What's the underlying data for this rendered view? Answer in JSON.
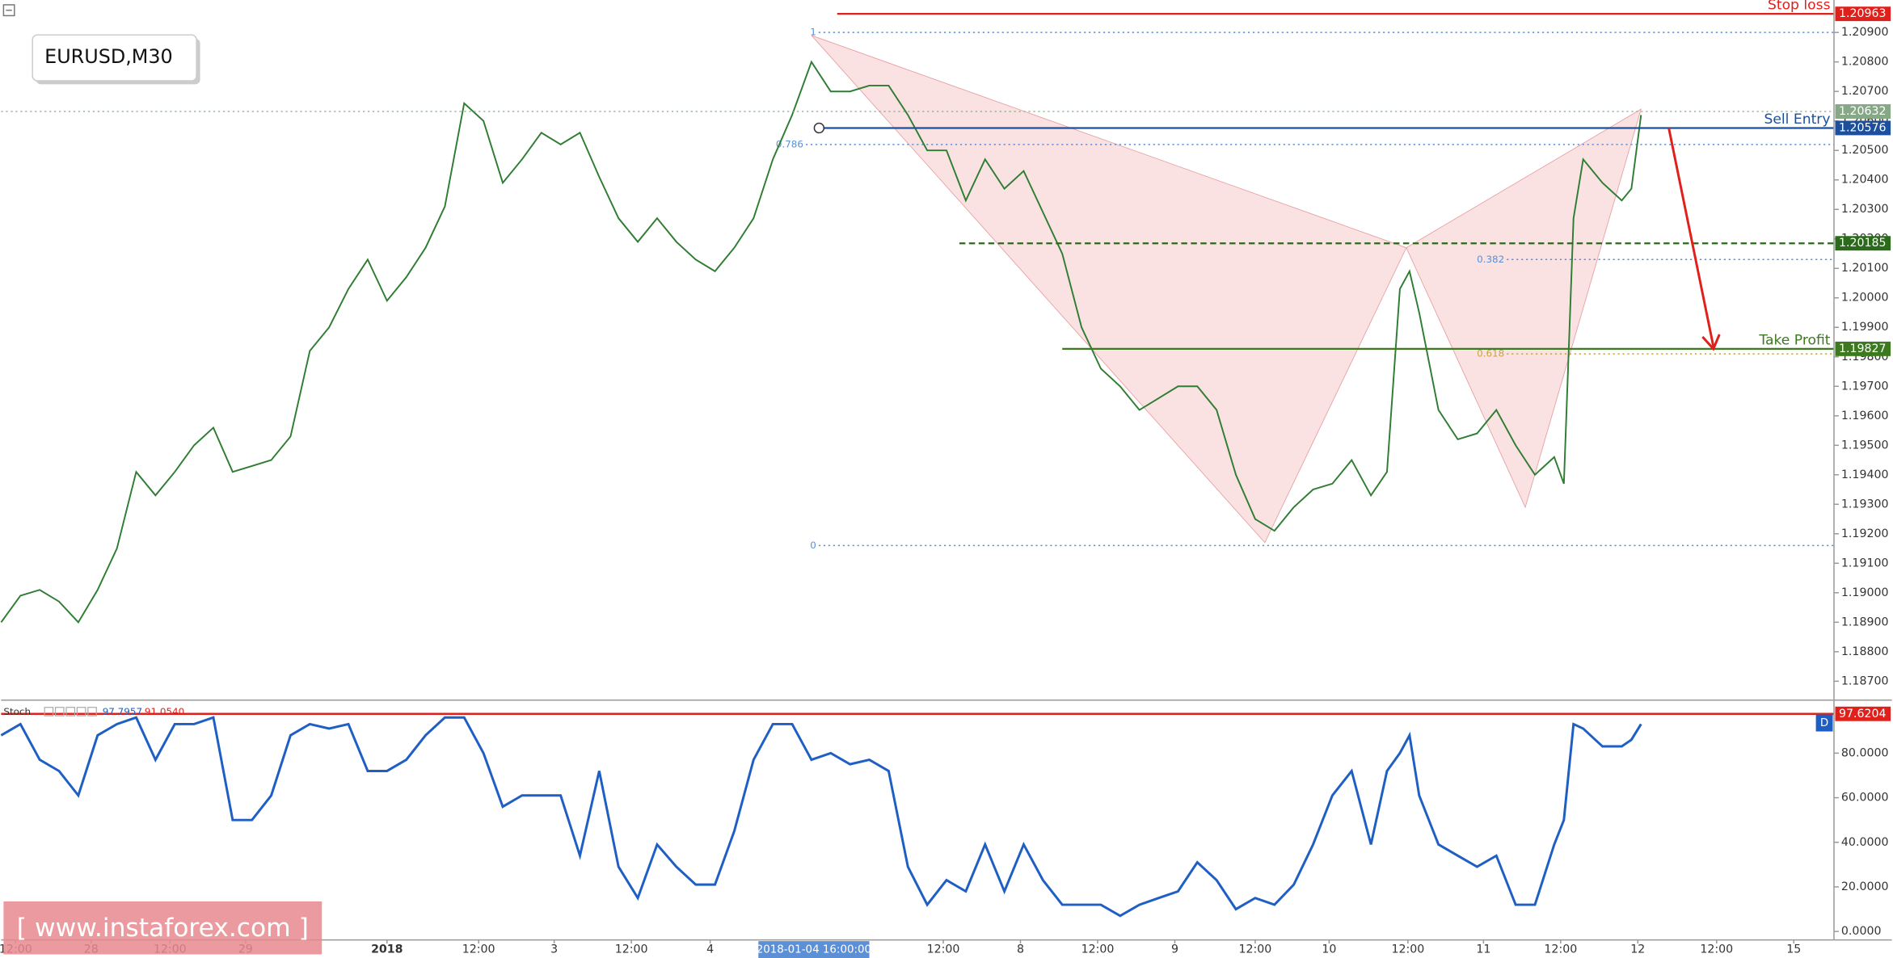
{
  "symbol_label": "EURUSD,M30",
  "watermark": "[ www.instaforex.com ]",
  "chart_data": [
    {
      "type": "line",
      "color": "#2e7d32",
      "x": [
        0,
        6,
        12,
        18,
        24,
        30,
        36,
        42,
        48,
        54,
        60,
        66,
        72,
        78,
        84,
        90,
        96,
        102,
        108,
        114,
        120,
        126,
        132,
        138,
        144,
        150,
        156,
        162,
        168,
        174,
        180,
        186,
        192,
        198,
        204,
        210,
        216,
        222,
        228,
        234,
        240,
        246,
        252,
        258,
        264,
        270,
        276,
        282,
        288,
        294,
        300,
        306,
        312,
        318,
        324,
        330,
        336,
        342,
        348,
        354,
        360,
        366,
        372,
        378,
        384,
        390,
        396,
        402,
        408,
        414,
        420,
        426,
        431,
        435,
        438,
        441,
        447,
        453,
        459,
        465,
        471,
        477,
        483,
        486,
        489,
        492,
        498,
        504,
        507,
        510
      ],
      "values": [
        1.189,
        1.1899,
        1.1901,
        1.1897,
        1.189,
        1.1901,
        1.1915,
        1.1941,
        1.1933,
        1.1941,
        1.195,
        1.1956,
        1.1941,
        1.1943,
        1.1945,
        1.1953,
        1.1982,
        1.199,
        1.2003,
        1.2013,
        1.1999,
        1.2007,
        1.2017,
        1.2031,
        1.2066,
        1.206,
        1.2039,
        1.2047,
        1.2056,
        1.2052,
        1.2056,
        1.2041,
        1.2027,
        1.2019,
        1.2027,
        1.2019,
        1.2013,
        1.2009,
        1.2017,
        1.2027,
        1.2047,
        1.2062,
        1.208,
        1.207,
        1.207,
        1.2072,
        1.2072,
        1.2062,
        1.205,
        1.205,
        1.2033,
        1.2047,
        1.2037,
        1.2043,
        1.2029,
        1.2015,
        1.199,
        1.1976,
        1.197,
        1.1962,
        1.1966,
        1.197,
        1.197,
        1.1962,
        1.194,
        1.1925,
        1.1921,
        1.1929,
        1.1935,
        1.1937,
        1.1945,
        1.1933,
        1.1941,
        1.2003,
        1.2009,
        1.1995,
        1.1962,
        1.1952,
        1.1954,
        1.1962,
        1.195,
        1.194,
        1.1946,
        1.1937,
        1.2027,
        1.2047,
        1.2039,
        1.2033,
        1.2037,
        1.2062
      ],
      "xlim": [
        0,
        570
      ],
      "ylim": [
        1.1864,
        1.2101
      ],
      "xticks": [
        {
          "value": 4.5,
          "label": "12:00"
        },
        {
          "value": 28,
          "label": "28"
        },
        {
          "value": 52.5,
          "label": "12:00"
        },
        {
          "value": 76,
          "label": "29"
        },
        {
          "value": 120,
          "label": "2018"
        },
        {
          "value": 148.5,
          "label": "12:00"
        },
        {
          "value": 172,
          "label": "3"
        },
        {
          "value": 196,
          "label": "12:00"
        },
        {
          "value": 220.5,
          "label": "4"
        },
        {
          "value": 293,
          "label": "12:00"
        },
        {
          "value": 317,
          "label": "8"
        },
        {
          "value": 341,
          "label": "12:00"
        },
        {
          "value": 365,
          "label": "9"
        },
        {
          "value": 390,
          "label": "12:00"
        },
        {
          "value": 413,
          "label": "10"
        },
        {
          "value": 437.5,
          "label": "12:00"
        },
        {
          "value": 461,
          "label": "11"
        },
        {
          "value": 485,
          "label": "12:00"
        },
        {
          "value": 509,
          "label": "12"
        },
        {
          "value": 533.5,
          "label": "12:00"
        },
        {
          "value": 557.5,
          "label": "15"
        }
      ],
      "yticks": [
        {
          "value": 1.187,
          "label": "1.18700"
        },
        {
          "value": 1.188,
          "label": "1.18800"
        },
        {
          "value": 1.189,
          "label": "1.18900"
        },
        {
          "value": 1.19,
          "label": "1.19000"
        },
        {
          "value": 1.191,
          "label": "1.19100"
        },
        {
          "value": 1.192,
          "label": "1.19200"
        },
        {
          "value": 1.193,
          "label": "1.19300"
        },
        {
          "value": 1.194,
          "label": "1.19400"
        },
        {
          "value": 1.195,
          "label": "1.19500"
        },
        {
          "value": 1.196,
          "label": "1.19600"
        },
        {
          "value": 1.197,
          "label": "1.19700"
        },
        {
          "value": 1.198,
          "label": "1.19800"
        },
        {
          "value": 1.199,
          "label": "1.19900"
        },
        {
          "value": 1.2,
          "label": "1.20000"
        },
        {
          "value": 1.201,
          "label": "1.20100"
        },
        {
          "value": 1.202,
          "label": "1.20200"
        },
        {
          "value": 1.203,
          "label": "1.20300"
        },
        {
          "value": 1.204,
          "label": "1.20400"
        },
        {
          "value": 1.205,
          "label": "1.20500"
        },
        {
          "value": 1.206,
          "label": "1.20600"
        },
        {
          "value": 1.207,
          "label": "1.20700"
        },
        {
          "value": 1.208,
          "label": "1.20800"
        },
        {
          "value": 1.209,
          "label": "1.20900"
        }
      ],
      "crosshair": {
        "x": 252,
        "label": "2018-01-04 16:00:00"
      },
      "pattern": {
        "x": [
          252,
          393,
          437,
          474,
          510
        ],
        "values": [
          1.2089,
          1.1917,
          1.2017,
          1.1929,
          1.2064
        ]
      },
      "levels": [
        {
          "label": "Stop loss",
          "value": 1.20963,
          "color": "#e0201b",
          "line_style": "solid",
          "x_start": 260
        },
        {
          "value": 1.20632,
          "color": "#86a886",
          "line_style": "dotted",
          "x_start": 0
        },
        {
          "label": "Sell Entry",
          "value": 1.20576,
          "color": "#1c4f9c",
          "line_style": "solid",
          "x_start": 254
        },
        {
          "value": 1.20185,
          "color": "#2a6a1a",
          "line_style": "dashed",
          "x_start": 298
        },
        {
          "label": "Take Profit",
          "value": 1.19827,
          "color": "#3d7a1f",
          "line_style": "solid",
          "x_start": 330
        }
      ],
      "fib_levels": [
        {
          "ratio": 1,
          "price": 1.209,
          "color": "#5b8fd6",
          "x_start": 249
        },
        {
          "ratio": 0.786,
          "price": 1.2052,
          "color": "#5b8fd6",
          "x_start": 245
        },
        {
          "ratio": 0.382,
          "price": 1.2013,
          "color": "#5b8fd6",
          "x_start": 463
        },
        {
          "ratio": 0.618,
          "price": 1.1981,
          "color": "#c9a23c",
          "x_start": 463
        },
        {
          "ratio": 0,
          "price": 1.1916,
          "color": "#5b8fd6",
          "x_start": 249
        }
      ]
    },
    {
      "type": "line",
      "title": "Stoch",
      "color": "#1f5fc4",
      "x": [
        0,
        6,
        12,
        18,
        24,
        30,
        36,
        42,
        48,
        54,
        60,
        66,
        72,
        78,
        84,
        90,
        96,
        102,
        108,
        114,
        120,
        126,
        132,
        138,
        144,
        150,
        156,
        162,
        168,
        174,
        180,
        186,
        192,
        198,
        204,
        210,
        216,
        222,
        228,
        234,
        240,
        246,
        252,
        258,
        264,
        270,
        276,
        282,
        288,
        294,
        300,
        306,
        312,
        318,
        324,
        330,
        336,
        342,
        348,
        354,
        360,
        366,
        372,
        378,
        384,
        390,
        396,
        402,
        408,
        414,
        420,
        426,
        431,
        435,
        438,
        441,
        447,
        453,
        459,
        465,
        471,
        477,
        483,
        486,
        489,
        492,
        498,
        504,
        507,
        510
      ],
      "values": [
        88,
        93,
        77,
        72,
        61,
        88,
        93,
        96,
        77,
        93,
        93,
        96,
        50,
        50,
        61,
        88,
        93,
        91,
        93,
        72,
        72,
        77,
        88,
        96,
        96,
        80,
        56,
        61,
        61,
        61,
        34,
        72,
        29,
        15,
        39,
        29,
        21,
        21,
        45,
        77,
        93,
        93,
        77,
        80,
        75,
        77,
        72,
        29,
        12,
        23,
        18,
        39,
        18,
        39,
        23,
        12,
        12,
        12,
        7,
        12,
        15,
        18,
        31,
        23,
        10,
        15,
        12,
        21,
        39,
        61,
        72,
        39,
        72,
        80,
        88,
        61,
        39,
        34,
        29,
        34,
        12,
        12,
        39,
        50,
        93,
        91,
        83,
        83,
        86,
        93
      ],
      "xlim": [
        0,
        570
      ],
      "ylim": [
        -3.8,
        102.7
      ],
      "yticks": [
        {
          "value": 0,
          "label": "0.0000"
        },
        {
          "value": 20,
          "label": "20.0000"
        },
        {
          "value": 40,
          "label": "40.0000"
        },
        {
          "value": 60,
          "label": "60.0000"
        },
        {
          "value": 80,
          "label": "80.0000"
        }
      ],
      "readouts": [
        {
          "value": 97.7957,
          "color": "#1f5fc4"
        },
        {
          "value": 91.054,
          "label": "91.0540",
          "color": "#e0201b"
        }
      ],
      "level": {
        "value": 97.6204,
        "color": "#e0201b"
      },
      "marker": "D"
    }
  ]
}
